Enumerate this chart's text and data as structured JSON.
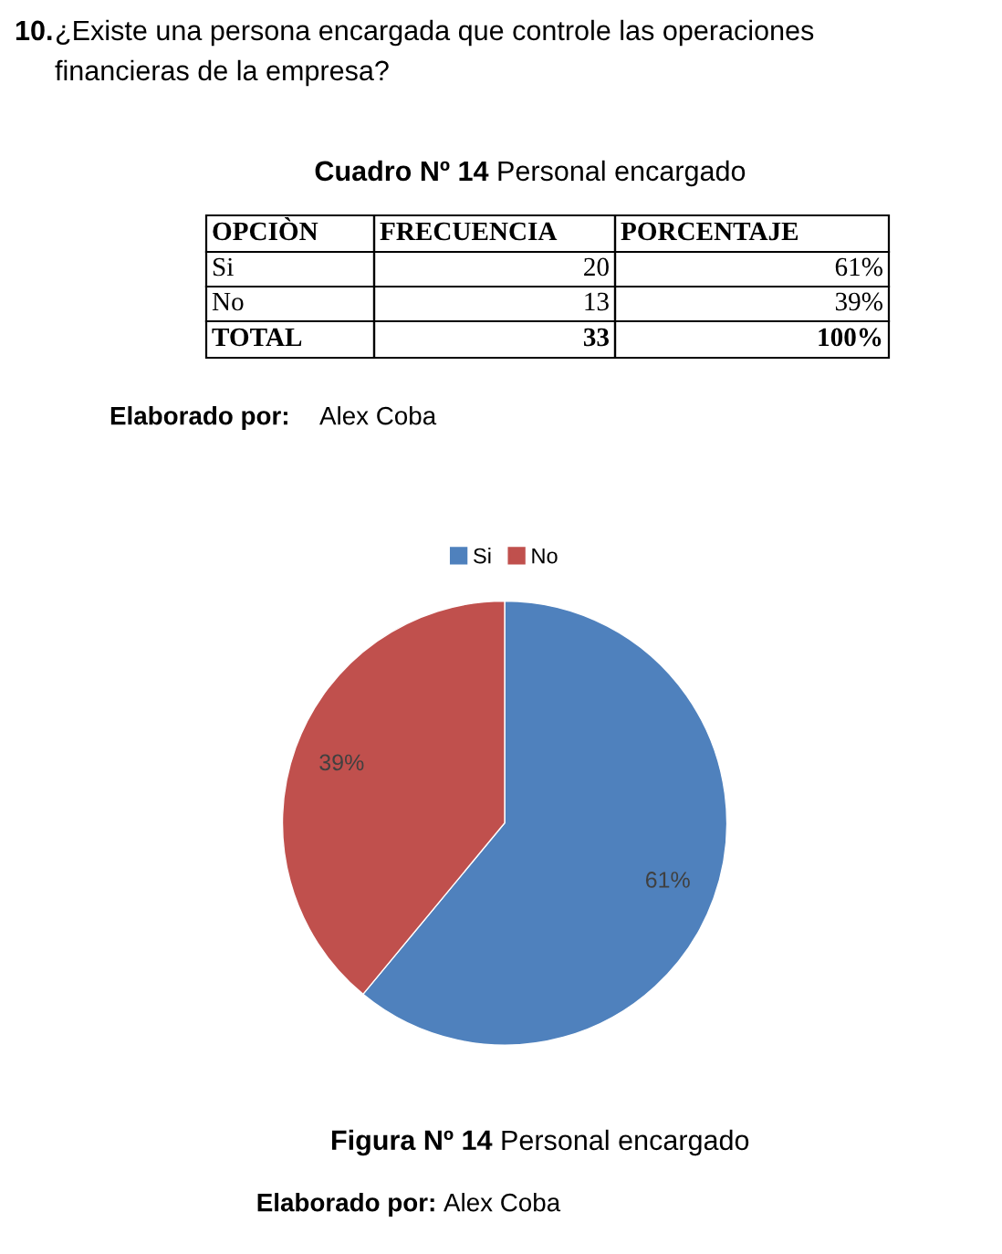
{
  "chart_data": {
    "type": "pie",
    "categories": [
      "Si",
      "No"
    ],
    "values": [
      61,
      39
    ],
    "colors": [
      "#4f81bd",
      "#c0504d"
    ],
    "value_labels": [
      "61%",
      "39%"
    ],
    "legend": "top",
    "annotations": [
      "10.",
      "¿Existe una persona encargada que controle las operaciones",
      "financieras de la empresa?",
      "Cuadro Nº 14",
      "Personal encargado",
      "OPCIÒN",
      "FRECUENCIA",
      "PORCENTAJE",
      "Si",
      "20",
      "61%",
      "No",
      "13",
      "39%",
      "TOTAL",
      "33",
      "100%",
      "Elaborado por:",
      "Alex Coba",
      "Figura Nº 14",
      "Personal encargado",
      "Elaborado por:",
      "Alex Coba"
    ]
  }
}
